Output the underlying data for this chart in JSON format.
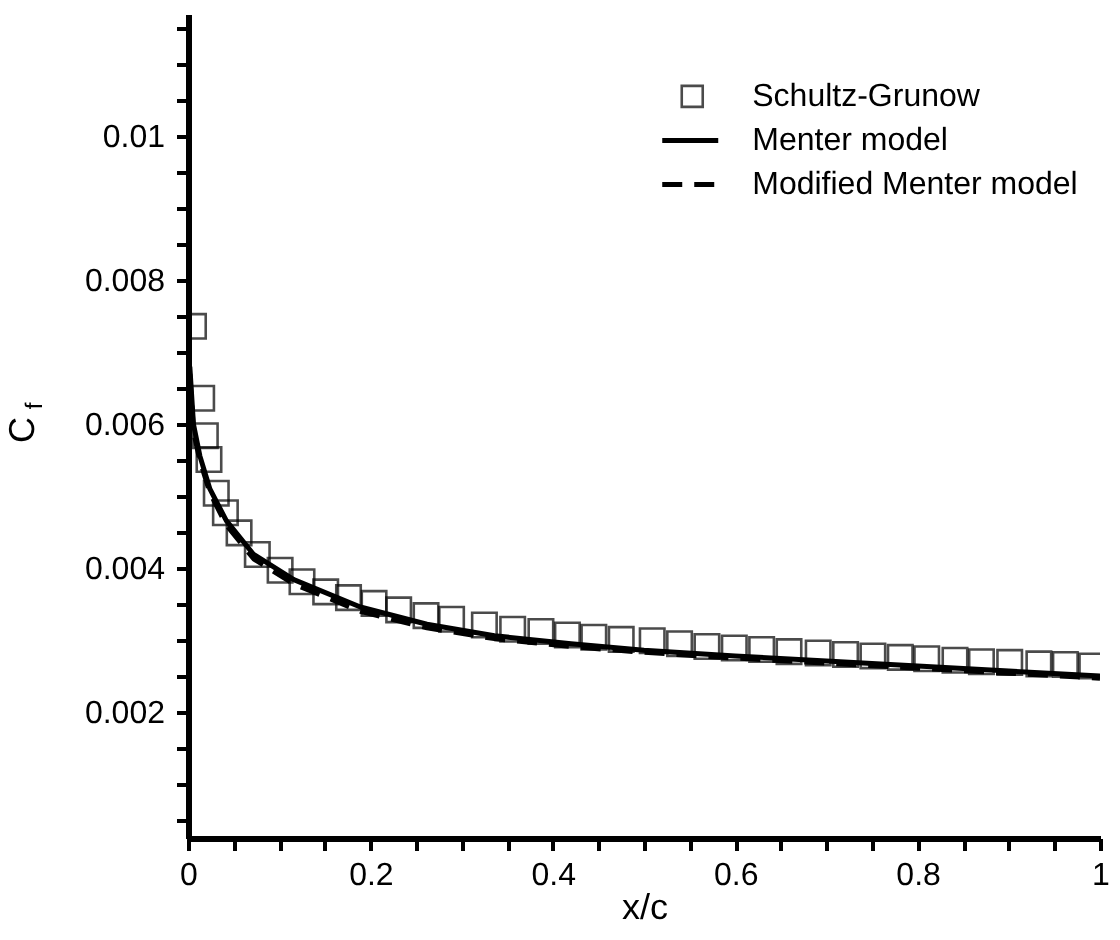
{
  "chart_data": {
    "type": "line",
    "xlabel": "x/c",
    "ylabel": "C$_{f}$",
    "xlim": [
      0,
      1
    ],
    "ylim": [
      0.00025,
      0.0117
    ],
    "xticks": [
      0,
      {
        "value": 0.05,
        "label": null
      },
      {
        "value": 0.1,
        "label": null
      },
      {
        "value": 0.15,
        "label": null
      },
      0.2,
      {
        "value": 0.25,
        "label": null
      },
      {
        "value": 0.3,
        "label": null
      },
      {
        "value": 0.35,
        "label": null
      },
      0.4,
      {
        "value": 0.45,
        "label": null
      },
      {
        "value": 0.5,
        "label": null
      },
      {
        "value": 0.55,
        "label": null
      },
      0.6,
      {
        "value": 0.65,
        "label": null
      },
      {
        "value": 0.7,
        "label": null
      },
      {
        "value": 0.75,
        "label": null
      },
      0.8,
      {
        "value": 0.85,
        "label": null
      },
      {
        "value": 0.9,
        "label": null
      },
      {
        "value": 0.95,
        "label": null
      },
      1
    ],
    "yticks": [
      {
        "value": 0.0005,
        "label": null
      },
      {
        "value": 0.001,
        "label": null
      },
      {
        "value": 0.0015,
        "label": null
      },
      0.002,
      {
        "value": 0.0025,
        "label": null
      },
      {
        "value": 0.003,
        "label": null
      },
      {
        "value": 0.0035,
        "label": null
      },
      0.004,
      {
        "value": 0.0045,
        "label": null
      },
      {
        "value": 0.005,
        "label": null
      },
      {
        "value": 0.0055,
        "label": null
      },
      0.006,
      {
        "value": 0.0065,
        "label": null
      },
      {
        "value": 0.007,
        "label": null
      },
      {
        "value": 0.0075,
        "label": null
      },
      0.008,
      {
        "value": 0.0085,
        "label": null
      },
      {
        "value": 0.009,
        "label": null
      },
      {
        "value": 0.0095,
        "label": null
      },
      0.01,
      {
        "value": 0.0105,
        "label": null
      },
      {
        "value": 0.011,
        "label": null
      },
      {
        "value": 0.0115,
        "label": null
      }
    ],
    "grid": false,
    "legend": "top right",
    "series": [
      {
        "name": "Schultz-Grunow",
        "type": "scatter",
        "marker": "square",
        "color": "#000000",
        "x": [
          0.006,
          0.015,
          0.019,
          0.023,
          0.031,
          0.041,
          0.056,
          0.076,
          0.101,
          0.125,
          0.151,
          0.176,
          0.204,
          0.231,
          0.261,
          0.289,
          0.325,
          0.356,
          0.387,
          0.416,
          0.445,
          0.475,
          0.509,
          0.539,
          0.569,
          0.599,
          0.629,
          0.659,
          0.691,
          0.721,
          0.751,
          0.781,
          0.81,
          0.841,
          0.87,
          0.901,
          0.933,
          0.962,
          0.991
        ],
        "values": [
          0.00736,
          0.00636,
          0.00584,
          0.00551,
          0.00504,
          0.00477,
          0.00449,
          0.00419,
          0.00397,
          0.00381,
          0.00367,
          0.00359,
          0.00351,
          0.00342,
          0.00334,
          0.00329,
          0.00321,
          0.00315,
          0.00312,
          0.00307,
          0.00304,
          0.00301,
          0.00299,
          0.00295,
          0.00291,
          0.00289,
          0.00287,
          0.00284,
          0.00282,
          0.0028,
          0.00278,
          0.00276,
          0.00274,
          0.00272,
          0.0027,
          0.00269,
          0.00267,
          0.00266,
          0.00264
        ]
      },
      {
        "name": "Menter model",
        "line_style": "solid",
        "color": "#000000",
        "x": [
          0.002,
          0.006,
          0.013,
          0.024,
          0.042,
          0.072,
          0.116,
          0.189,
          0.262,
          0.336,
          0.42,
          0.5,
          0.6,
          0.7,
          0.8,
          0.9,
          1.0
        ],
        "values": [
          0.0068,
          0.006,
          0.00556,
          0.0051,
          0.00466,
          0.00419,
          0.00384,
          0.00346,
          0.00322,
          0.00306,
          0.00295,
          0.00286,
          0.00278,
          0.00271,
          0.00264,
          0.00257,
          0.0025
        ]
      },
      {
        "name": "Modified Menter model",
        "line_style": "dashed",
        "color": "#000000",
        "x": [
          0.002,
          0.006,
          0.013,
          0.024,
          0.042,
          0.072,
          0.116,
          0.189,
          0.262,
          0.336,
          0.42,
          0.5,
          0.6,
          0.7,
          0.8,
          0.9,
          1.0
        ],
        "values": [
          0.0067,
          0.0059,
          0.0055,
          0.00505,
          0.0046,
          0.00413,
          0.00378,
          0.0034,
          0.00317,
          0.00302,
          0.00291,
          0.00283,
          0.00275,
          0.00268,
          0.00261,
          0.00254,
          0.00247
        ]
      }
    ]
  }
}
